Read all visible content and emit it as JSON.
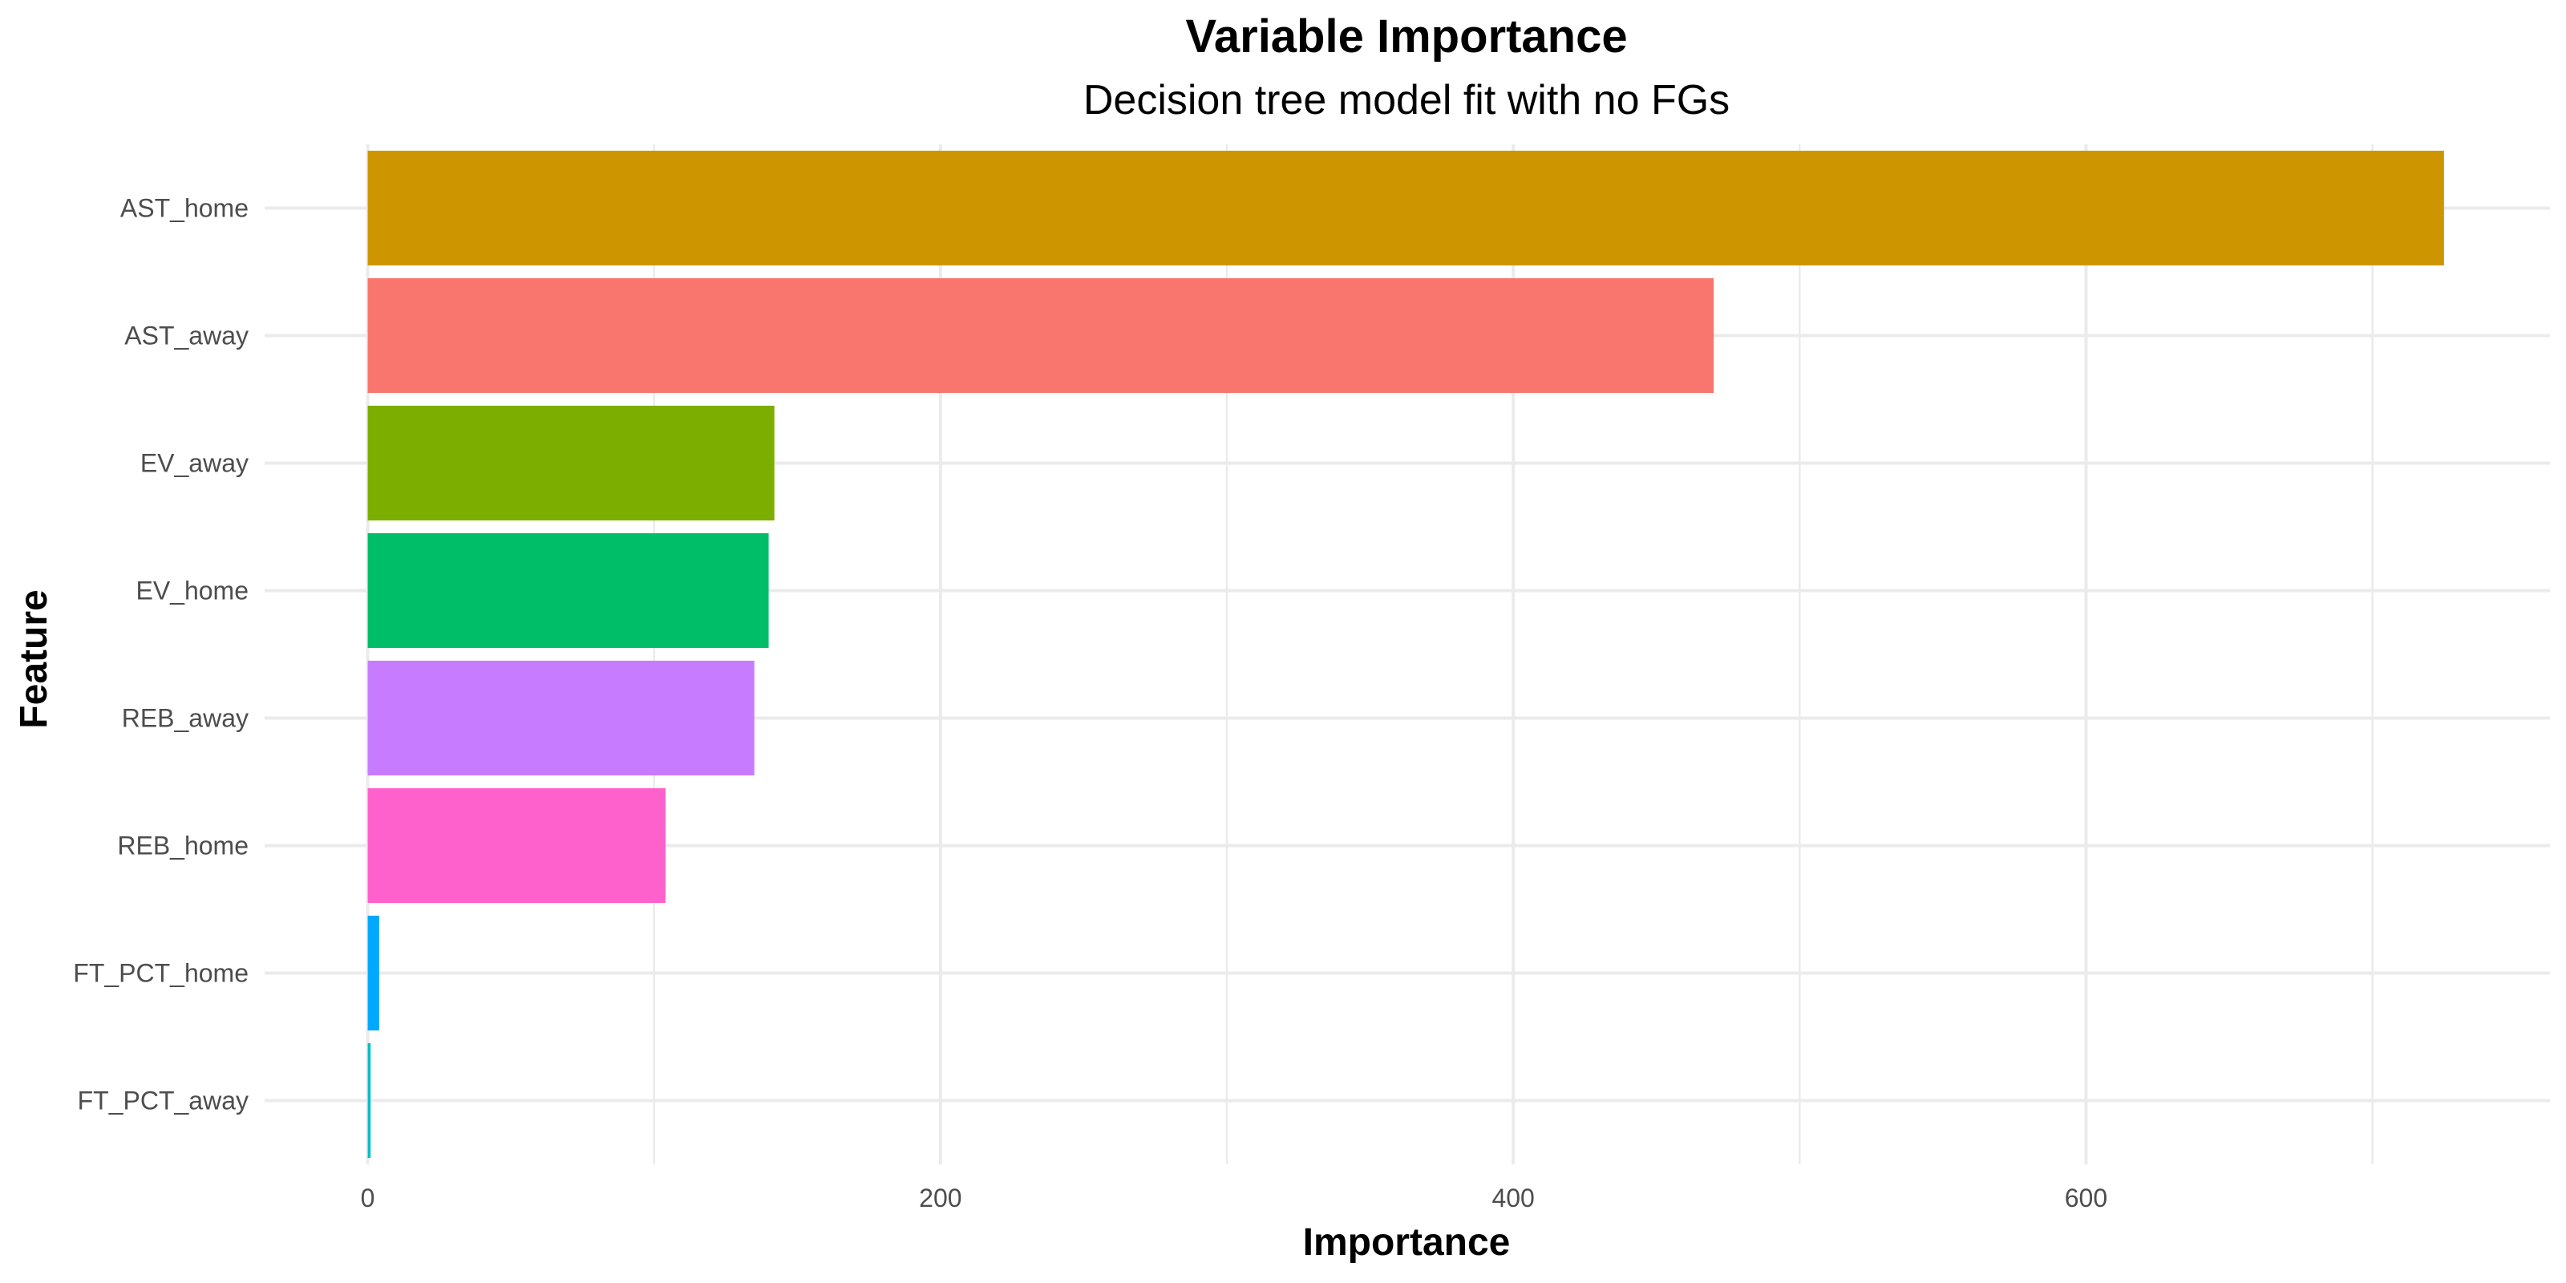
{
  "chart_data": {
    "type": "bar",
    "orientation": "horizontal",
    "title": "Variable Importance",
    "subtitle": "Decision tree model fit with no FGs",
    "xlabel": "Importance",
    "ylabel": "Feature",
    "categories": [
      "AST_home",
      "AST_away",
      "EV_away",
      "EV_home",
      "REB_away",
      "REB_home",
      "FT_PCT_home",
      "FT_PCT_away"
    ],
    "values": [
      725,
      470,
      142,
      140,
      135,
      104,
      4,
      1
    ],
    "colors": [
      "#CD9600",
      "#F8766D",
      "#7CAE00",
      "#00BE67",
      "#C77CFF",
      "#FF61CC",
      "#00A9FF",
      "#00BFC4"
    ],
    "xlim": [
      -36,
      762
    ],
    "xticks": [
      0,
      200,
      400,
      600
    ],
    "xtick_labels": [
      "0",
      "200",
      "400",
      "600"
    ],
    "grid": true,
    "legend": "none"
  }
}
